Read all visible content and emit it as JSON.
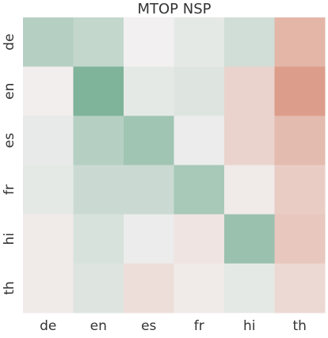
{
  "chart_data": {
    "type": "heatmap",
    "title": "MTOP NSP",
    "x_categories": [
      "de",
      "en",
      "es",
      "fr",
      "hi",
      "th"
    ],
    "y_categories": [
      "de",
      "en",
      "es",
      "fr",
      "hi",
      "th"
    ],
    "values": [
      [
        0.45,
        0.35,
        0.0,
        0.1,
        0.25,
        -0.5
      ],
      [
        -0.02,
        0.85,
        0.1,
        0.15,
        -0.25,
        -0.7
      ],
      [
        0.08,
        0.45,
        0.6,
        0.05,
        -0.25,
        -0.45
      ],
      [
        0.1,
        0.3,
        0.3,
        0.55,
        -0.05,
        -0.3
      ],
      [
        -0.05,
        0.2,
        0.05,
        -0.1,
        0.65,
        -0.35
      ],
      [
        -0.05,
        0.15,
        -0.15,
        -0.05,
        0.1,
        -0.2
      ]
    ],
    "zlim": [
      -1,
      1
    ],
    "colors": [
      "#d37b60",
      "#f2f0f0",
      "#6ba88b"
    ]
  }
}
